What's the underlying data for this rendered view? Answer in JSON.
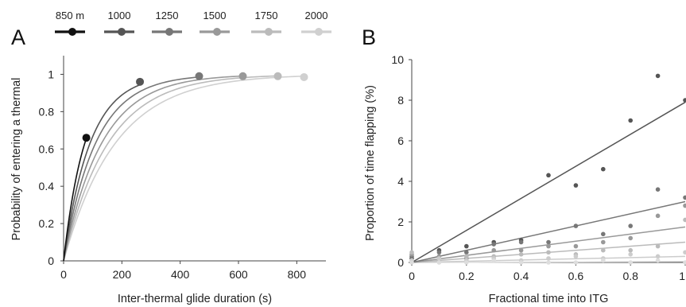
{
  "chart_data": [
    {
      "panel": "A",
      "type": "line",
      "xlabel": "Inter-thermal glide duration (s)",
      "ylabel": "Probability of entering a thermal",
      "xlim": [
        0,
        900
      ],
      "ylim": [
        0,
        1.1
      ],
      "xticks": [
        "0",
        "200",
        "400",
        "600",
        "800"
      ],
      "yticks": [
        "0",
        "0.2",
        "0.4",
        "0.6",
        "0.8",
        "1"
      ],
      "legend_placement": "top",
      "series": [
        {
          "name": "850 m",
          "color": "#111111",
          "tau": 73,
          "end": {
            "x": 78,
            "y": 0.66
          }
        },
        {
          "name": "1000",
          "color": "#555555",
          "tau": 91,
          "end": {
            "x": 262,
            "y": 0.96
          }
        },
        {
          "name": "1250",
          "color": "#777777",
          "tau": 110,
          "end": {
            "x": 465,
            "y": 0.99
          }
        },
        {
          "name": "1500",
          "color": "#999999",
          "tau": 131,
          "end": {
            "x": 615,
            "y": 0.99
          }
        },
        {
          "name": "1750",
          "color": "#bbbbbb",
          "tau": 153,
          "end": {
            "x": 735,
            "y": 0.99
          }
        },
        {
          "name": "2000",
          "color": "#d0d0d0",
          "tau": 178,
          "end": {
            "x": 825,
            "y": 0.985
          }
        }
      ]
    },
    {
      "panel": "B",
      "type": "scatter",
      "xlabel": "Fractional time into ITG",
      "ylabel": "Proportion of time flapping (%)",
      "xlim": [
        0,
        1
      ],
      "ylim": [
        0,
        10
      ],
      "xticks": [
        "0",
        "0.2",
        "0.4",
        "0.6",
        "0.8",
        "1"
      ],
      "yticks": [
        "0",
        "2",
        "4",
        "6",
        "8",
        "10"
      ],
      "series": [
        {
          "color": "#555555",
          "fit": [
            0,
            7.9
          ],
          "x": [
            0,
            0.1,
            0.2,
            0.3,
            0.4,
            0.5,
            0.6,
            0.7,
            0.8,
            0.9,
            1.0
          ],
          "y": [
            0.2,
            0.6,
            0.8,
            1.0,
            1.1,
            4.3,
            3.8,
            4.6,
            7.0,
            9.2,
            8.0
          ]
        },
        {
          "color": "#777777",
          "fit": [
            0,
            3.0
          ],
          "x": [
            0,
            0.1,
            0.2,
            0.3,
            0.4,
            0.5,
            0.6,
            0.7,
            0.8,
            0.9,
            1.0
          ],
          "y": [
            0.3,
            0.5,
            0.5,
            0.9,
            1.0,
            1.0,
            1.8,
            1.4,
            1.8,
            3.6,
            3.2
          ]
        },
        {
          "color": "#999999",
          "fit": [
            0,
            1.75
          ],
          "x": [
            0,
            0.1,
            0.2,
            0.3,
            0.4,
            0.5,
            0.6,
            0.7,
            0.8,
            0.9,
            1.0
          ],
          "y": [
            0.4,
            0.3,
            0.2,
            0.6,
            0.6,
            0.8,
            0.8,
            1.0,
            1.2,
            2.3,
            2.8
          ]
        },
        {
          "color": "#bbbbbb",
          "fit": [
            0,
            1.0
          ],
          "x": [
            0,
            0.1,
            0.2,
            0.3,
            0.4,
            0.5,
            0.6,
            0.7,
            0.8,
            0.9,
            1.0
          ],
          "y": [
            0.5,
            0.1,
            0.3,
            0.3,
            0.4,
            0.5,
            0.4,
            0.6,
            0.6,
            0.8,
            2.1
          ]
        },
        {
          "color": "#cccccc",
          "fit": [
            0,
            0.3
          ],
          "x": [
            0,
            0.1,
            0.2,
            0.3,
            0.4,
            0.5,
            0.6,
            0.7,
            0.8,
            0.9,
            1.0
          ],
          "y": [
            0.1,
            0.2,
            0.1,
            0.2,
            0.1,
            0.2,
            0.3,
            0.2,
            0.4,
            0.3,
            0.5
          ]
        },
        {
          "color": "#dddddd",
          "fit": [
            0,
            0.05
          ],
          "x": [
            0,
            0.1,
            0.2,
            0.3,
            0.4,
            0.5,
            0.6,
            0.7,
            0.8,
            0.9,
            1.0
          ],
          "y": [
            0.0,
            0.0,
            0.0,
            0.1,
            0.0,
            0.0,
            0.0,
            0.1,
            0.0,
            0.1,
            0.0
          ]
        }
      ]
    }
  ]
}
